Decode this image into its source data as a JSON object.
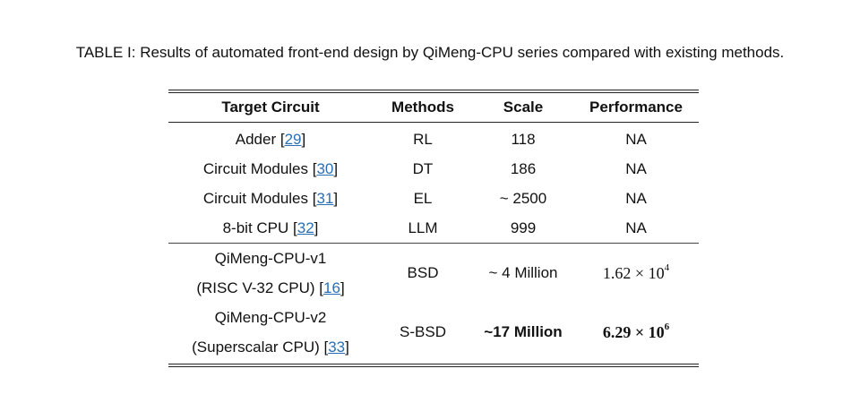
{
  "caption": "TABLE I: Results of automated front-end design by QiMeng-CPU series compared with existing methods.",
  "headers": [
    "Target Circuit",
    "Methods",
    "Scale",
    "Performance"
  ],
  "rows_group1": [
    {
      "target": "Adder ",
      "ref": "29",
      "method": "RL",
      "scale": "118",
      "perf": "NA"
    },
    {
      "target": "Circuit Modules ",
      "ref": "30",
      "method": "DT",
      "scale": "186",
      "perf": "NA"
    },
    {
      "target": "Circuit Modules ",
      "ref": "31",
      "method": "EL",
      "scale": "~ 2500",
      "perf": "NA"
    },
    {
      "target": "8-bit CPU ",
      "ref": "32",
      "method": "LLM",
      "scale": "999",
      "perf": "NA"
    }
  ],
  "rows_group2": [
    {
      "target_line1": "QiMeng-CPU-v1",
      "target_line2": "(RISC V-32 CPU) ",
      "ref": "16",
      "method": "BSD",
      "scale": "~ 4 Million",
      "perf_base": "1.62 × 10",
      "perf_exp": "4"
    },
    {
      "target_line1": "QiMeng-CPU-v2",
      "target_line2": "(Superscalar CPU) ",
      "ref": "33",
      "method": "S-BSD",
      "scale": "~17 Million",
      "perf_base": "6.29 × 10",
      "perf_exp": "6"
    }
  ]
}
